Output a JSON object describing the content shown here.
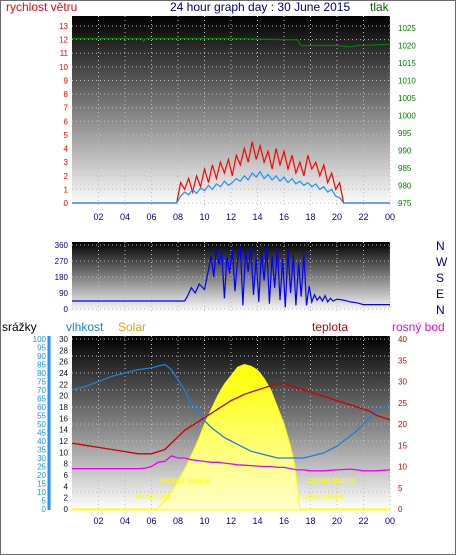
{
  "header": {
    "wind_label": "rychlost větru",
    "title": "24 hour graph day : 30 June 2015",
    "pressure_label": "tlak"
  },
  "colors": {
    "wind": "#ff0000",
    "gust_avg": "#1e90ff",
    "pressure": "#008000",
    "direction": "#0000ff",
    "rain": "#1e90ff",
    "humidity": "#1e7fd8",
    "solar": "#ffff00",
    "solar_label": "#e8a020",
    "temperature": "#cc0000",
    "dewpoint": "#ee00ee",
    "direction_letters": "#000080",
    "time_ticks": "#000080"
  },
  "chart_data": [
    {
      "type": "line",
      "name": "wind_pressure",
      "x_ticks": [
        "02",
        "04",
        "06",
        "08",
        "10",
        "12",
        "14",
        "16",
        "18",
        "20",
        "22",
        "00"
      ],
      "left_axis": {
        "label": "rychlost větru",
        "ticks": [
          0,
          1,
          2,
          3,
          4,
          5,
          6,
          7,
          8,
          9,
          10,
          11,
          12,
          13
        ],
        "ylim": [
          0,
          13
        ]
      },
      "right_axis": {
        "label": "tlak",
        "ticks": [
          975,
          980,
          985,
          990,
          995,
          1000,
          1005,
          1010,
          1015,
          1020,
          1025
        ],
        "ylim": [
          975,
          1027
        ]
      },
      "grid": true,
      "series": [
        {
          "role": "wind_max",
          "x": [
            0,
            7.9,
            8.2,
            8.5,
            8.8,
            9.1,
            9.4,
            9.7,
            10,
            10.3,
            10.6,
            10.9,
            11.2,
            11.5,
            11.8,
            12.1,
            12.4,
            12.7,
            13,
            13.3,
            13.6,
            13.9,
            14.2,
            14.5,
            14.8,
            15.1,
            15.4,
            15.7,
            16,
            16.3,
            16.6,
            16.9,
            17.2,
            17.5,
            17.8,
            18.1,
            18.4,
            18.7,
            19,
            19.3,
            19.6,
            19.9,
            20.2,
            20.5,
            24
          ],
          "y": [
            0,
            0,
            1.5,
            1,
            1.8,
            0.8,
            2,
            1.2,
            2.5,
            1.5,
            2.8,
            1.8,
            3,
            2.2,
            3.2,
            2,
            3.5,
            2.8,
            4,
            3,
            4.5,
            3.2,
            4.2,
            3,
            3.8,
            2.5,
            4,
            2.8,
            3.8,
            2.5,
            3.5,
            2.2,
            3,
            2,
            3.5,
            2.5,
            3,
            2,
            2.8,
            1.5,
            2.2,
            1,
            1.5,
            0,
            0
          ]
        },
        {
          "role": "wind_avg",
          "x": [
            0,
            7.9,
            8.2,
            8.5,
            8.8,
            9.1,
            9.4,
            9.7,
            10,
            10.3,
            10.6,
            10.9,
            11.2,
            11.5,
            11.8,
            12.1,
            12.4,
            12.7,
            13,
            13.3,
            13.6,
            13.9,
            14.2,
            14.5,
            14.8,
            15.1,
            15.4,
            15.7,
            16,
            16.3,
            16.6,
            16.9,
            17.2,
            17.5,
            17.8,
            18.1,
            18.4,
            18.7,
            19,
            19.3,
            19.6,
            19.9,
            20.2,
            20.5,
            24
          ],
          "y": [
            0,
            0,
            0.5,
            0.8,
            0.6,
            1,
            0.7,
            1.1,
            0.9,
            1.3,
            1,
            1.4,
            1.2,
            1.6,
            1.3,
            1.5,
            1.8,
            1.6,
            2,
            1.7,
            2.2,
            1.9,
            2.3,
            1.8,
            2.1,
            1.7,
            2,
            1.6,
            1.9,
            1.5,
            1.8,
            1.4,
            1.6,
            1.3,
            1.5,
            1.2,
            1.4,
            1,
            1.2,
            0.8,
            1,
            0.5,
            0.4,
            0,
            0
          ]
        },
        {
          "role": "pressure",
          "x": [
            0,
            5.3,
            5.4,
            5.6,
            12,
            17,
            17.3,
            20,
            21,
            21.5,
            22,
            24
          ],
          "y": [
            1022,
            1022,
            1021.2,
            1022,
            1022,
            1021.6,
            1020,
            1020,
            1019.6,
            1020,
            1020,
            1020.4
          ]
        }
      ]
    },
    {
      "type": "line",
      "name": "wind_direction",
      "x_ticks": [
        "02",
        "04",
        "06",
        "08",
        "10",
        "12",
        "14",
        "16",
        "18",
        "20",
        "22",
        "00"
      ],
      "y_ticks": [
        0,
        90,
        180,
        270,
        360
      ],
      "ylim": [
        0,
        360
      ],
      "direction_letters": [
        "N",
        "W",
        "S",
        "E",
        "N"
      ],
      "grid": true,
      "series": [
        {
          "role": "direction",
          "x": [
            0,
            8.5,
            8.7,
            9,
            9.3,
            9.6,
            10,
            10.3,
            10.5,
            10.7,
            10.9,
            11.1,
            11.3,
            11.5,
            11.7,
            11.9,
            12.1,
            12.3,
            12.5,
            12.7,
            12.9,
            13.1,
            13.3,
            13.5,
            13.7,
            13.9,
            14.1,
            14.3,
            14.5,
            14.7,
            14.9,
            15.1,
            15.3,
            15.5,
            15.7,
            15.9,
            16.1,
            16.3,
            16.5,
            16.7,
            16.9,
            17.1,
            17.3,
            17.5,
            17.7,
            17.9,
            18.1,
            18.3,
            18.5,
            18.7,
            18.9,
            19.1,
            19.3,
            19.5,
            19.7,
            20,
            20.5,
            21,
            21.5,
            22,
            24
          ],
          "y": [
            45,
            45,
            70,
            120,
            90,
            140,
            110,
            220,
            300,
            180,
            340,
            250,
            320,
            60,
            300,
            200,
            340,
            100,
            280,
            350,
            20,
            330,
            210,
            350,
            80,
            290,
            40,
            320,
            160,
            350,
            30,
            300,
            120,
            340,
            50,
            280,
            10,
            330,
            90,
            300,
            20,
            260,
            70,
            310,
            20,
            130,
            40,
            80,
            50,
            70,
            45,
            75,
            40,
            60,
            45,
            55,
            50,
            40,
            35,
            25,
            25
          ]
        }
      ]
    },
    {
      "type": "line",
      "name": "temp_humidity_solar",
      "x_ticks": [
        "02",
        "04",
        "06",
        "08",
        "10",
        "12",
        "14",
        "16",
        "18",
        "20",
        "22",
        "00"
      ],
      "rain_axis": {
        "label": "srážky",
        "ticks": [
          0,
          5,
          10,
          15,
          20,
          25,
          30,
          35,
          40,
          45,
          50,
          55,
          60,
          65,
          70,
          75,
          80,
          85,
          90,
          95,
          100
        ],
        "ylim": [
          0,
          100
        ]
      },
      "humidity_axis": {
        "label": "vlhkost",
        "ticks": [
          0,
          2,
          4,
          6,
          8,
          10,
          12,
          14,
          16,
          18,
          20,
          22,
          24,
          26,
          28,
          30
        ],
        "ylim": [
          0,
          30
        ]
      },
      "solar_label": "Solar",
      "temp_axis": {
        "label": "teplota",
        "ticks": [
          0,
          5,
          10,
          15,
          20,
          25,
          30,
          35,
          40
        ],
        "ylim": [
          0,
          40
        ]
      },
      "dewpoint_label": "rosný bod",
      "annotations": [
        "východ slunce",
        "západ slunce",
        "Moon Set",
        "Moon Rise"
      ],
      "grid": true,
      "series": [
        {
          "role": "humidity",
          "x": [
            0,
            1,
            2,
            3,
            4,
            5,
            6,
            7,
            7.5,
            8,
            8.5,
            9,
            9.5,
            10,
            10.5,
            11,
            11.5,
            12,
            12.5,
            13,
            13.5,
            14,
            14.5,
            15,
            15.5,
            16,
            16.5,
            17,
            17.5,
            18,
            18.5,
            19,
            19.5,
            20,
            20.5,
            21,
            21.5,
            22,
            22.5,
            23,
            23.5,
            24
          ],
          "y": [
            70,
            72,
            75,
            78,
            80,
            82,
            83,
            85,
            82,
            76,
            70,
            62,
            58,
            52,
            48,
            45,
            42,
            40,
            38,
            36,
            34,
            33,
            32,
            31,
            30,
            30,
            30,
            30,
            30,
            31,
            32,
            33,
            35,
            37,
            40,
            43,
            46,
            50,
            54,
            58,
            60,
            62
          ]
        },
        {
          "role": "temperature",
          "x": [
            0,
            1,
            2,
            3,
            4,
            5,
            6,
            7,
            7.5,
            8,
            8.5,
            9,
            9.5,
            10,
            10.5,
            11,
            11.5,
            12,
            12.5,
            13,
            13.5,
            14,
            14.5,
            15,
            15.5,
            16,
            16.5,
            17,
            17.5,
            18,
            18.5,
            19,
            19.5,
            20,
            20.5,
            21,
            21.5,
            22,
            22.5,
            23,
            23.5,
            24
          ],
          "y": [
            15.5,
            15,
            14.5,
            14,
            13.5,
            13,
            13,
            14,
            15.5,
            17,
            18.5,
            19.5,
            20.5,
            21.5,
            22.5,
            23.5,
            24.5,
            25.5,
            26.2,
            27,
            27.5,
            28,
            28.5,
            29,
            29.5,
            29.5,
            29,
            28.5,
            28,
            27.5,
            27,
            26.5,
            26,
            25.5,
            25,
            24.5,
            24,
            23.5,
            23,
            22,
            21.5,
            21
          ]
        },
        {
          "role": "dewpoint",
          "x": [
            0,
            1,
            2,
            3,
            4,
            5,
            5.5,
            6,
            6.5,
            7,
            7.5,
            8,
            8.5,
            9,
            9.5,
            10,
            10.5,
            11,
            11.5,
            12,
            12.5,
            13,
            13.5,
            14,
            14.5,
            15,
            15.5,
            16,
            16.5,
            17,
            17.5,
            18,
            18.5,
            19,
            19.5,
            20,
            20.5,
            21,
            21.5,
            22,
            22.5,
            23,
            23.5,
            24
          ],
          "y": [
            9.5,
            9.5,
            9.5,
            9.5,
            9.5,
            9.5,
            9.6,
            10,
            11,
            11.2,
            12.5,
            12,
            12,
            11.6,
            11.4,
            11.2,
            11,
            11,
            10.8,
            10.6,
            10.4,
            10.3,
            10.2,
            10.1,
            10,
            10,
            9.8,
            9.8,
            9.5,
            9.2,
            9.2,
            9,
            9,
            9,
            9.1,
            9.2,
            9.3,
            9.4,
            9.2,
            9,
            9,
            9,
            9.1,
            9.2
          ]
        },
        {
          "role": "solar",
          "x": [
            0,
            6.4,
            7,
            7.5,
            8,
            8.5,
            9,
            9.5,
            10,
            10.5,
            11,
            11.5,
            12,
            12.5,
            13,
            13.5,
            14,
            14.5,
            15,
            15.5,
            16,
            16.5,
            16.8,
            17.2,
            24
          ],
          "y": [
            0,
            0,
            1.5,
            3,
            5,
            7,
            9.5,
            12,
            15,
            17.5,
            20,
            22,
            23.5,
            25,
            25.5,
            25.2,
            24.5,
            23,
            21,
            18,
            15,
            11,
            8,
            0,
            0
          ]
        }
      ]
    }
  ]
}
